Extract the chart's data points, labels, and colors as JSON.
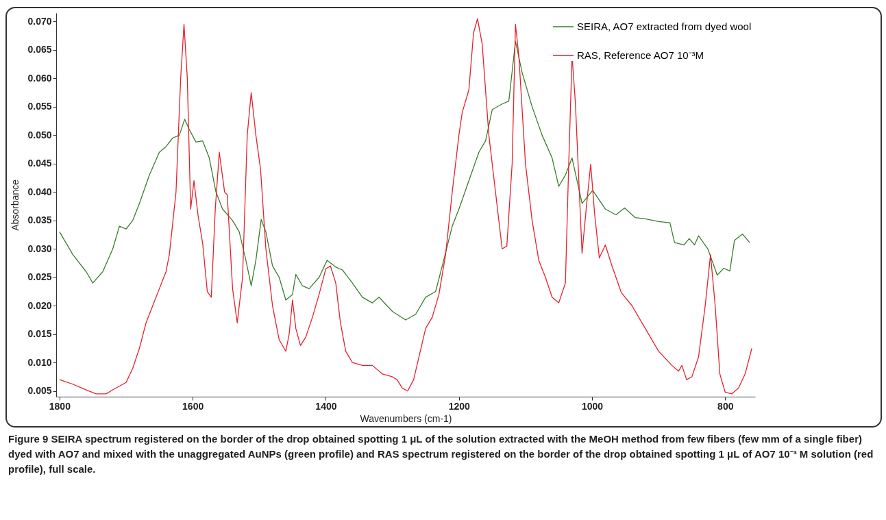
{
  "chart_data": {
    "type": "line",
    "xlabel": "Wavenumbers (cm-1)",
    "ylabel": "Absorbance",
    "xlim": [
      1805,
      755
    ],
    "ylim": [
      0.004,
      0.0715
    ],
    "xticks": [
      1800,
      1600,
      1400,
      1200,
      1000,
      800
    ],
    "yticks": [
      0.005,
      {
        "value": 0.01,
        "label": "0.010"
      },
      0.015,
      {
        "value": 0.02,
        "label": "0.020"
      },
      0.025,
      {
        "value": 0.03,
        "label": "0.030"
      },
      0.035,
      {
        "value": 0.04,
        "label": "0.040"
      },
      0.045,
      {
        "value": 0.05,
        "label": "0.050"
      },
      0.055,
      {
        "value": 0.06,
        "label": "0.060"
      },
      0.065,
      {
        "value": 0.07,
        "label": "0.070"
      }
    ],
    "grid": false,
    "legend": "top right",
    "series": [
      {
        "name": "SEIRA, AO7 extracted from dyed wool",
        "color": "#3a7d2c",
        "x": [
          1800,
          1780,
          1760,
          1750,
          1735,
          1720,
          1710,
          1700,
          1690,
          1680,
          1665,
          1650,
          1640,
          1630,
          1620,
          1612,
          1605,
          1595,
          1585,
          1575,
          1565,
          1555,
          1540,
          1530,
          1520,
          1512,
          1505,
          1497,
          1490,
          1480,
          1470,
          1460,
          1450,
          1445,
          1435,
          1425,
          1410,
          1398,
          1385,
          1375,
          1360,
          1345,
          1330,
          1320,
          1300,
          1280,
          1265,
          1250,
          1235,
          1225,
          1210,
          1200,
          1185,
          1170,
          1160,
          1150,
          1135,
          1125,
          1115,
          1105,
          1090,
          1075,
          1060,
          1050,
          1040,
          1030,
          1015,
          999,
          980,
          964,
          951,
          935,
          920,
          900,
          883,
          876,
          862,
          854,
          846,
          840,
          826,
          812,
          802,
          793,
          786,
          774,
          763
        ],
        "values": [
          0.033,
          0.029,
          0.026,
          0.024,
          0.026,
          0.03,
          0.034,
          0.0335,
          0.035,
          0.038,
          0.043,
          0.047,
          0.048,
          0.0495,
          0.05,
          0.0528,
          0.051,
          0.0488,
          0.049,
          0.046,
          0.04,
          0.037,
          0.035,
          0.033,
          0.028,
          0.0235,
          0.028,
          0.0352,
          0.033,
          0.027,
          0.025,
          0.021,
          0.022,
          0.0255,
          0.0235,
          0.023,
          0.025,
          0.028,
          0.0268,
          0.0263,
          0.024,
          0.0215,
          0.0205,
          0.0215,
          0.019,
          0.0175,
          0.0185,
          0.0215,
          0.0225,
          0.027,
          0.034,
          0.037,
          0.042,
          0.047,
          0.049,
          0.0545,
          0.0555,
          0.056,
          0.0665,
          0.061,
          0.055,
          0.05,
          0.046,
          0.041,
          0.043,
          0.046,
          0.038,
          0.0403,
          0.037,
          0.036,
          0.0372,
          0.0355,
          0.0353,
          0.0348,
          0.0346,
          0.0311,
          0.0307,
          0.0318,
          0.0307,
          0.0323,
          0.03,
          0.0254,
          0.0266,
          0.0261,
          0.0315,
          0.0326,
          0.0311
        ]
      },
      {
        "name": "RAS, Reference AO7 10⁻³M",
        "color": "#e8202a",
        "x": [
          1800,
          1780,
          1760,
          1745,
          1730,
          1720,
          1700,
          1690,
          1680,
          1670,
          1660,
          1650,
          1640,
          1635,
          1625,
          1618,
          1613,
          1608,
          1603,
          1598,
          1592,
          1585,
          1578,
          1572,
          1566,
          1560,
          1552,
          1548,
          1540,
          1533,
          1525,
          1518,
          1512,
          1505,
          1498,
          1490,
          1480,
          1470,
          1460,
          1455,
          1450,
          1445,
          1438,
          1430,
          1420,
          1410,
          1400,
          1393,
          1385,
          1378,
          1370,
          1360,
          1345,
          1330,
          1315,
          1300,
          1293,
          1285,
          1277,
          1268,
          1258,
          1250,
          1240,
          1230,
          1220,
          1210,
          1200,
          1195,
          1185,
          1178,
          1172,
          1165,
          1155,
          1145,
          1135,
          1128,
          1120,
          1115,
          1110,
          1100,
          1090,
          1080,
          1070,
          1060,
          1050,
          1040,
          1035,
          1030,
          1025,
          1015,
          1008,
          1002,
          996,
          989,
          980,
          970,
          956,
          940,
          920,
          900,
          880,
          870,
          865,
          858,
          850,
          840,
          830,
          822,
          815,
          808,
          800,
          790,
          780,
          770,
          760
        ],
        "values": [
          0.007,
          0.0062,
          0.0052,
          0.0045,
          0.0045,
          0.0052,
          0.0065,
          0.009,
          0.0125,
          0.017,
          0.02,
          0.023,
          0.026,
          0.029,
          0.04,
          0.06,
          0.0695,
          0.06,
          0.037,
          0.042,
          0.036,
          0.031,
          0.0225,
          0.0215,
          0.037,
          0.047,
          0.04,
          0.0395,
          0.023,
          0.017,
          0.025,
          0.05,
          0.0575,
          0.05,
          0.044,
          0.03,
          0.02,
          0.014,
          0.012,
          0.015,
          0.021,
          0.016,
          0.013,
          0.0145,
          0.018,
          0.022,
          0.0265,
          0.027,
          0.024,
          0.017,
          0.012,
          0.01,
          0.0095,
          0.0095,
          0.008,
          0.0075,
          0.007,
          0.0055,
          0.005,
          0.007,
          0.012,
          0.016,
          0.018,
          0.022,
          0.029,
          0.04,
          0.05,
          0.054,
          0.058,
          0.068,
          0.0705,
          0.066,
          0.05,
          0.04,
          0.03,
          0.0305,
          0.045,
          0.0695,
          0.064,
          0.045,
          0.035,
          0.028,
          0.025,
          0.0215,
          0.0205,
          0.024,
          0.045,
          0.064,
          0.0557,
          0.0292,
          0.038,
          0.0449,
          0.036,
          0.0284,
          0.0307,
          0.027,
          0.0223,
          0.02,
          0.016,
          0.012,
          0.0095,
          0.0085,
          0.0095,
          0.007,
          0.0075,
          0.011,
          0.02,
          0.029,
          0.02,
          0.008,
          0.0048,
          0.0045,
          0.0055,
          0.008,
          0.0125
        ]
      }
    ],
    "annotations": [
      "Figure 9 SEIRA spectrum registered on the border of the drop obtained spotting 1 μL of the solution extracted with the MeOH method from few fibers (few mm of a single fiber) dyed with AO7 and mixed with the unaggregated AuNPs (green profile) and RAS spectrum registered on the border of the drop obtained spotting 1 μL of AO7 10⁻³ M solution (red profile), full scale."
    ]
  }
}
